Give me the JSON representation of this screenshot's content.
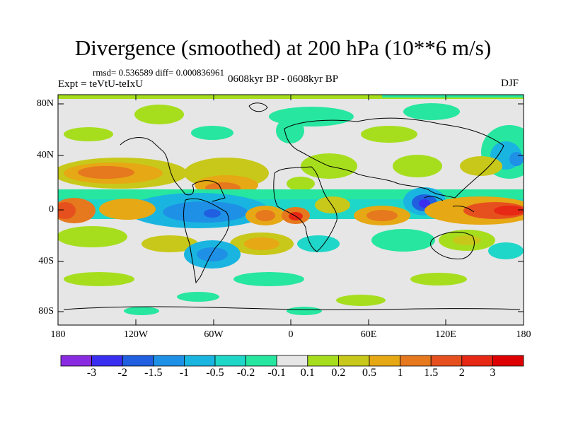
{
  "title": "Divergence (smoothed) at 200 hPa (10**6 m/s)",
  "stats": "rmsd= 0.536589 diff= 0.000836961",
  "experiment": "Expt = teVtU-teIxU",
  "period": "0608kyr BP - 0608kyr BP",
  "season": "DJF",
  "lat_labels": [
    "80N",
    "40N",
    "0",
    "40S",
    "80S"
  ],
  "lon_labels": [
    "180",
    "120W",
    "60W",
    "0",
    "60E",
    "120E",
    "180"
  ],
  "colorbar": {
    "labels": [
      "-3",
      "-2",
      "-1.5",
      "-1",
      "-0.5",
      "-0.2",
      "-0.1",
      "0.1",
      "0.2",
      "0.5",
      "1",
      "1.5",
      "2",
      "3"
    ],
    "colors": [
      "#8a2be2",
      "#3a2ef0",
      "#1f5fe0",
      "#1e90e6",
      "#19b5e0",
      "#1fd7c8",
      "#26e6a0",
      "#e6e6e6",
      "#a6de1e",
      "#c8c81a",
      "#e6a814",
      "#e6781e",
      "#e6501e",
      "#e62814",
      "#dd0000"
    ]
  },
  "map": {
    "background": "#e6e6e6",
    "features": [
      "positive divergence band along the equatorial west Pacific and Indonesia",
      "strong convergence over the Maritime Continent near 100E",
      "convergence over tropical South America and the Atlantic",
      "positive bands across the subtropical Pacific and Atlantic near 25N"
    ]
  }
}
